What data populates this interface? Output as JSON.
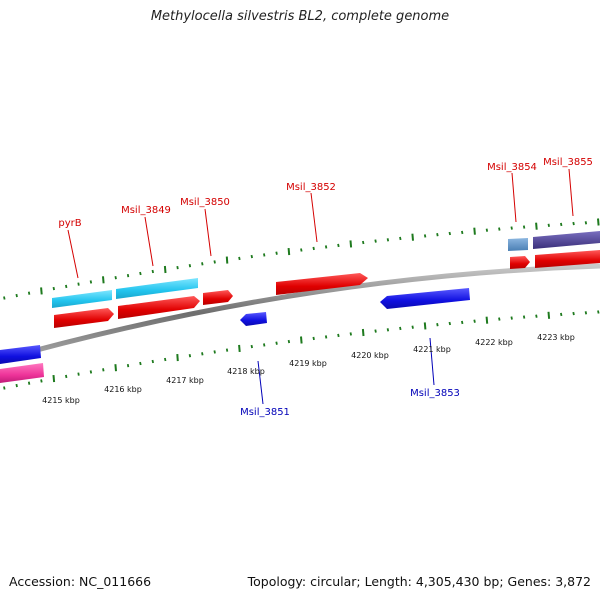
{
  "title": "Methylocella silvestris BL2, complete genome",
  "footer": {
    "accession": "Accession: NC_011666",
    "summary": "Topology: circular; Length: 4,305,430 bp; Genes: 3,872"
  },
  "colors": {
    "backbone": "#8a8a8a",
    "tick": "#1e7a1e",
    "forward_cds": "#ee1111",
    "forward_gene": "#33ccee",
    "reverse_cds": "#1111dd",
    "reverse_gene": "#ee3399",
    "pale_blue": "#5a8ec0",
    "dark_purple": "#4a3f8c"
  },
  "kbp_labels": [
    "4215 kbp",
    "4216 kbp",
    "4217 kbp",
    "4218 kbp",
    "4219 kbp",
    "4220 kbp",
    "4221 kbp",
    "4222 kbp",
    "4223 kbp"
  ],
  "labels_forward": [
    "pyrB",
    "Msil_3849",
    "Msil_3850",
    "Msil_3852",
    "Msil_3854",
    "Msil_3855"
  ],
  "labels_reverse": [
    "Msil_3851",
    "Msil_3853"
  ]
}
